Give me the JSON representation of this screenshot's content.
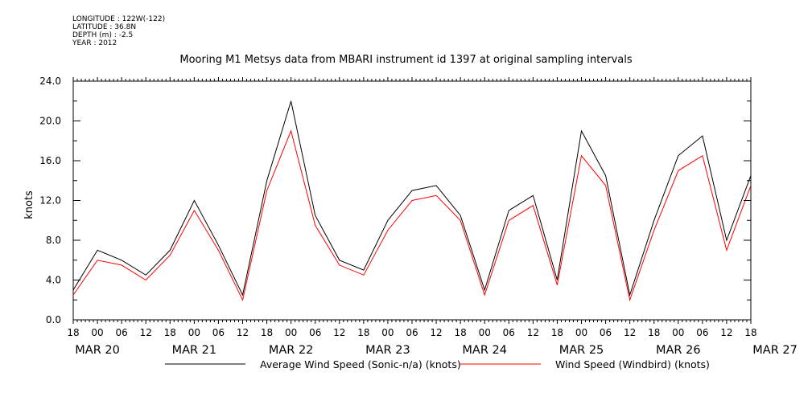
{
  "header": {
    "longitude": "LONGITUDE : 122W(-122)",
    "latitude": "LATITUDE : 36.8N",
    "depth": "DEPTH (m) : -2.5",
    "year": "YEAR : 2012"
  },
  "chart_data": {
    "type": "line",
    "title": "Mooring M1 Metsys data from MBARI instrument id 1397 at original sampling intervals",
    "ylabel": "knots",
    "ylim": [
      0,
      24
    ],
    "yticks": [
      "0.0",
      "4.0",
      "8.0",
      "12.0",
      "16.0",
      "20.0",
      "24.0"
    ],
    "xlim_hours": [
      0,
      168
    ],
    "x_tick_hours": [
      "18",
      "00",
      "06",
      "12",
      "18",
      "00",
      "06",
      "12",
      "18",
      "00",
      "06",
      "12",
      "18",
      "00",
      "06",
      "12",
      "18",
      "00",
      "06",
      "12",
      "18",
      "00",
      "06",
      "12",
      "18",
      "00",
      "06",
      "12",
      "18"
    ],
    "x_date_labels": [
      "MAR 20",
      "MAR 21",
      "MAR 22",
      "MAR 23",
      "MAR 24",
      "MAR 25",
      "MAR 26",
      "MAR 27"
    ],
    "legend": "bottom",
    "series": [
      {
        "name": "Average Wind Speed (Sonic-n/a) (knots)",
        "color": "#000000",
        "x": [
          "2012-03-20 18:00",
          "2012-03-21 00:00",
          "2012-03-21 06:00",
          "2012-03-21 12:00",
          "2012-03-21 18:00",
          "2012-03-22 00:00",
          "2012-03-22 06:00",
          "2012-03-22 12:00",
          "2012-03-22 18:00",
          "2012-03-23 00:00",
          "2012-03-23 06:00",
          "2012-03-23 12:00",
          "2012-03-23 18:00",
          "2012-03-24 00:00",
          "2012-03-24 06:00",
          "2012-03-24 12:00",
          "2012-03-24 18:00",
          "2012-03-25 00:00",
          "2012-03-25 06:00",
          "2012-03-25 12:00",
          "2012-03-25 18:00",
          "2012-03-26 00:00",
          "2012-03-26 06:00",
          "2012-03-26 12:00",
          "2012-03-26 18:00",
          "2012-03-27 00:00",
          "2012-03-27 06:00",
          "2012-03-27 12:00",
          "2012-03-27 18:00"
        ],
        "values": [
          3.0,
          7.0,
          6.0,
          4.5,
          7.0,
          12.0,
          7.5,
          2.5,
          14.0,
          22.0,
          10.5,
          6.0,
          5.0,
          10.0,
          13.0,
          13.5,
          10.5,
          3.0,
          11.0,
          12.5,
          4.0,
          19.0,
          14.5,
          2.5,
          10.0,
          16.5,
          18.5,
          8.0,
          14.5
        ]
      },
      {
        "name": "Wind Speed (Windbird) (knots)",
        "color": "#ff0000",
        "x": [
          "2012-03-20 18:00",
          "2012-03-21 00:00",
          "2012-03-21 06:00",
          "2012-03-21 12:00",
          "2012-03-21 18:00",
          "2012-03-22 00:00",
          "2012-03-22 06:00",
          "2012-03-22 12:00",
          "2012-03-22 18:00",
          "2012-03-23 00:00",
          "2012-03-23 06:00",
          "2012-03-23 12:00",
          "2012-03-23 18:00",
          "2012-03-24 00:00",
          "2012-03-24 06:00",
          "2012-03-24 12:00",
          "2012-03-24 18:00",
          "2012-03-25 00:00",
          "2012-03-25 06:00",
          "2012-03-25 12:00",
          "2012-03-25 18:00",
          "2012-03-26 00:00",
          "2012-03-26 06:00",
          "2012-03-26 12:00",
          "2012-03-26 18:00",
          "2012-03-27 00:00",
          "2012-03-27 06:00",
          "2012-03-27 12:00",
          "2012-03-27 18:00"
        ],
        "values": [
          2.5,
          6.0,
          5.5,
          4.0,
          6.5,
          11.0,
          7.0,
          2.0,
          13.0,
          19.0,
          9.5,
          5.5,
          4.5,
          9.0,
          12.0,
          12.5,
          10.0,
          2.5,
          10.0,
          11.5,
          3.5,
          16.5,
          13.5,
          2.0,
          9.0,
          15.0,
          16.5,
          7.0,
          13.5
        ]
      }
    ]
  }
}
